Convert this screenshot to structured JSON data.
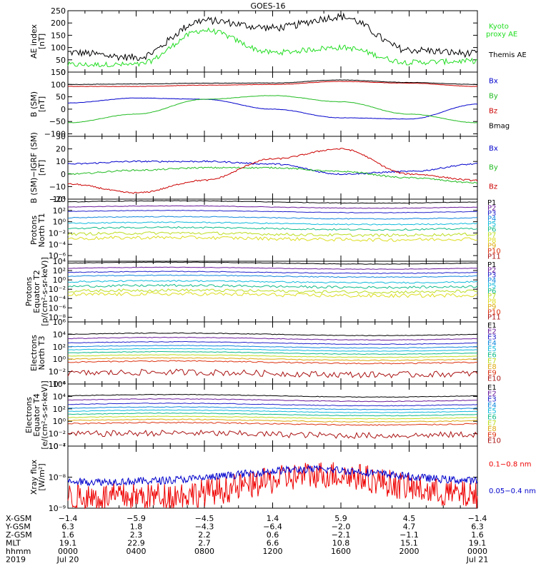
{
  "title": "GOES-16",
  "panels": [
    {
      "id": "ae",
      "ylabel": [
        "AE index",
        "[nT]"
      ],
      "ylim": [
        0,
        250
      ],
      "log": false,
      "yticks": [
        "0",
        "50",
        "100",
        "150",
        "200",
        "250"
      ],
      "ytickvals": [
        0,
        50,
        100,
        150,
        200,
        250
      ],
      "legend": [
        {
          "text": "Kyoto",
          "color": "#22dd22"
        },
        {
          "text": "proxy AE",
          "color": "#22dd22"
        },
        {
          "text": "Themis AE",
          "color": "#000000"
        }
      ]
    },
    {
      "id": "b",
      "ylabel": [
        "B (SM)",
        "[nT]"
      ],
      "ylim": [
        -110,
        150
      ],
      "log": false,
      "yticks": [
        "−100",
        "−50",
        "0",
        "50",
        "100",
        "150"
      ],
      "ytickvals": [
        -100,
        -50,
        0,
        50,
        100,
        150
      ],
      "legend": [
        {
          "text": "Bx",
          "color": "#0000cc"
        },
        {
          "text": "By",
          "color": "#22bb22"
        },
        {
          "text": "Bz",
          "color": "#cc0000"
        },
        {
          "text": "Bmag",
          "color": "#000000"
        }
      ]
    },
    {
      "id": "db",
      "ylabel": [
        "B (SM)−IGRF (SM)",
        "[nT]"
      ],
      "ylim": [
        -20,
        30
      ],
      "log": false,
      "yticks": [
        "−20",
        "−10",
        "0",
        "10",
        "20",
        "30"
      ],
      "ytickvals": [
        -20,
        -10,
        0,
        10,
        20,
        30
      ],
      "legend": [
        {
          "text": "Bx",
          "color": "#0000cc"
        },
        {
          "text": "By",
          "color": "#22bb22"
        },
        {
          "text": "Bz",
          "color": "#cc0000"
        }
      ]
    },
    {
      "id": "p1",
      "ylabel": [
        "Protons",
        "North T1"
      ],
      "ylim": [
        -7,
        4
      ],
      "log": true,
      "yticks": [
        "10⁴",
        "10²",
        "10⁰",
        "10⁻²",
        "10⁻⁴",
        "10⁻⁶"
      ],
      "ytickvals": [
        4,
        2,
        0,
        -2,
        -4,
        -6
      ],
      "legend": [
        {
          "text": "P1",
          "color": "#000000"
        },
        {
          "text": "P2",
          "color": "#6a1a9a"
        },
        {
          "text": "P3",
          "color": "#2222cc"
        },
        {
          "text": "P4",
          "color": "#1188dd"
        },
        {
          "text": "P5",
          "color": "#11bbdd"
        },
        {
          "text": "P6",
          "color": "#11bb88"
        },
        {
          "text": "P7",
          "color": "#bbdd22"
        },
        {
          "text": "P8",
          "color": "#dddd22"
        },
        {
          "text": "P9",
          "color": "#ddaa11"
        },
        {
          "text": "P10",
          "color": "#dd3311"
        },
        {
          "text": "P11",
          "color": "#aa1111"
        }
      ]
    },
    {
      "id": "p2",
      "ylabel": [
        "Protons",
        "Equator T2",
        "[p/(cm²-s-sr-keV)]"
      ],
      "ylim": [
        -9,
        4
      ],
      "log": true,
      "yticks": [
        "10⁴",
        "10²",
        "10⁰",
        "10⁻²",
        "10⁻⁴",
        "10⁻⁶",
        "10⁻⁸"
      ],
      "ytickvals": [
        4,
        2,
        0,
        -2,
        -4,
        -6,
        -8
      ],
      "legend": [
        {
          "text": "P1",
          "color": "#000000"
        },
        {
          "text": "P2",
          "color": "#6a1a9a"
        },
        {
          "text": "P3",
          "color": "#2222cc"
        },
        {
          "text": "P4",
          "color": "#1188dd"
        },
        {
          "text": "P5",
          "color": "#11bbdd"
        },
        {
          "text": "P6",
          "color": "#11bb88"
        },
        {
          "text": "P7",
          "color": "#bbdd22"
        },
        {
          "text": "P8",
          "color": "#dddd22"
        },
        {
          "text": "P9",
          "color": "#ddaa11"
        },
        {
          "text": "P10",
          "color": "#dd3311"
        },
        {
          "text": "P11",
          "color": "#aa1111"
        }
      ]
    },
    {
      "id": "e1",
      "ylabel": [
        "Electrons",
        "North T3"
      ],
      "ylim": [
        -4,
        6
      ],
      "log": true,
      "yticks": [
        "10⁶",
        "10⁴",
        "10²",
        "10⁰",
        "10⁻²",
        "10⁻⁴"
      ],
      "ytickvals": [
        6,
        4,
        2,
        0,
        -2,
        -4
      ],
      "legend": [
        {
          "text": "E1",
          "color": "#000000"
        },
        {
          "text": "E2",
          "color": "#6a1a9a"
        },
        {
          "text": "E3",
          "color": "#2222cc"
        },
        {
          "text": "E4",
          "color": "#1188dd"
        },
        {
          "text": "E5",
          "color": "#11bbdd"
        },
        {
          "text": "E6",
          "color": "#11bb88"
        },
        {
          "text": "E7",
          "color": "#bbdd22"
        },
        {
          "text": "E8",
          "color": "#ddaa11"
        },
        {
          "text": "E9",
          "color": "#dd3311"
        },
        {
          "text": "E10",
          "color": "#aa1111"
        }
      ]
    },
    {
      "id": "e2",
      "ylabel": [
        "Electrons",
        "Equator T4",
        "[e/(cm²-s-sr-keV)]"
      ],
      "ylim": [
        -4,
        6
      ],
      "log": true,
      "yticks": [
        "10⁶",
        "10⁴",
        "10²",
        "10⁰",
        "10⁻²",
        "10⁻⁴"
      ],
      "ytickvals": [
        6,
        4,
        2,
        0,
        -2,
        -4
      ],
      "legend": [
        {
          "text": "E1",
          "color": "#000000"
        },
        {
          "text": "E2",
          "color": "#6a1a9a"
        },
        {
          "text": "E3",
          "color": "#2222cc"
        },
        {
          "text": "E4",
          "color": "#1188dd"
        },
        {
          "text": "E5",
          "color": "#11bbdd"
        },
        {
          "text": "E6",
          "color": "#11bb88"
        },
        {
          "text": "E7",
          "color": "#bbdd22"
        },
        {
          "text": "E8",
          "color": "#ddaa11"
        },
        {
          "text": "E9",
          "color": "#dd3311"
        },
        {
          "text": "E10",
          "color": "#aa1111"
        }
      ]
    },
    {
      "id": "xr",
      "ylabel": [
        "Xray flux",
        "[W/m²]"
      ],
      "ylim": [
        -9,
        -7
      ],
      "log": true,
      "yticks": [
        "10⁻⁷",
        "10⁻⁸",
        "10⁻⁹"
      ],
      "ytickvals": [
        -7,
        -8,
        -9
      ],
      "legend": [
        {
          "text": "0.1−0.8 nm",
          "color": "#ee0000"
        },
        {
          "text": "0.05−0.4 nm",
          "color": "#0000cc"
        }
      ]
    }
  ],
  "ephemeris": {
    "rows": [
      {
        "label": "X-GSM",
        "values": [
          "−1.4",
          "−5.9",
          "−4.5",
          "1.4",
          "5.9",
          "4.5",
          "−1.4"
        ]
      },
      {
        "label": "Y-GSM",
        "values": [
          "6.3",
          "1.8",
          "−4.3",
          "−6.4",
          "−2.0",
          "4.7",
          "6.3"
        ]
      },
      {
        "label": "Z-GSM",
        "values": [
          "1.6",
          "2.3",
          "2.2",
          "0.6",
          "−2.1",
          "−1.1",
          "1.6"
        ]
      },
      {
        "label": "MLT",
        "values": [
          "19.1",
          "22.9",
          "2.7",
          "6.6",
          "10.8",
          "15.1",
          "19.1"
        ]
      },
      {
        "label": "hhmm",
        "values": [
          "0000",
          "0400",
          "0800",
          "1200",
          "1600",
          "2000",
          "0000"
        ]
      },
      {
        "label": "2019",
        "values": [
          "Jul 20",
          "",
          "",
          "",
          "",
          "",
          "Jul 21"
        ]
      }
    ]
  },
  "chart_data": {
    "type": "line",
    "title": "GOES-16",
    "x": [
      "0000",
      "0400",
      "0800",
      "1200",
      "1600",
      "2000",
      "0000"
    ],
    "panels": [
      {
        "panel": "AE index",
        "ylim": [
          0,
          250
        ],
        "series": [
          {
            "name": "Themis AE",
            "values": [
              80,
              60,
              210,
              180,
              225,
              90,
              75
            ]
          },
          {
            "name": "Kyoto proxy AE",
            "values": [
              30,
              30,
              170,
              80,
              100,
              40,
              45
            ]
          }
        ]
      },
      {
        "panel": "B (SM)",
        "ylim": [
          -110,
          150
        ],
        "series": [
          {
            "name": "Bx",
            "values": [
              25,
              45,
              40,
              0,
              -35,
              -40,
              20
            ]
          },
          {
            "name": "By",
            "values": [
              -55,
              -20,
              40,
              55,
              30,
              -20,
              -55
            ]
          },
          {
            "name": "Bz",
            "values": [
              92,
              92,
              97,
              100,
              112,
              105,
              92
            ]
          },
          {
            "name": "Bmag",
            "values": [
              100,
              102,
              105,
              106,
              118,
              108,
              100
            ]
          }
        ]
      },
      {
        "panel": "B (SM)-IGRF (SM)",
        "ylim": [
          -20,
          30
        ],
        "series": [
          {
            "name": "Bx",
            "values": [
              8,
              10,
              10,
              8,
              0,
              2,
              8
            ]
          },
          {
            "name": "By",
            "values": [
              0,
              3,
              5,
              5,
              2,
              -3,
              -7
            ]
          },
          {
            "name": "Bz",
            "values": [
              -8,
              -15,
              -5,
              12,
              20,
              0,
              -5
            ]
          }
        ]
      }
    ]
  }
}
